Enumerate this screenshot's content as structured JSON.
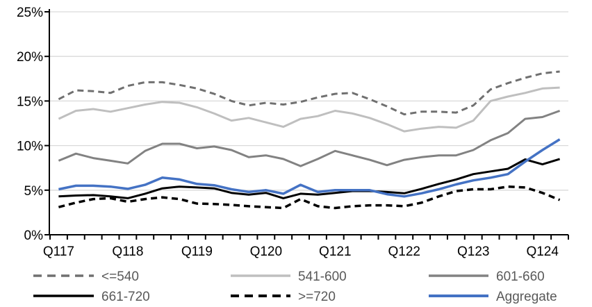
{
  "chart_data": {
    "type": "line",
    "title": "",
    "categories": [
      "2017Q1",
      "2017Q2",
      "2017Q3",
      "2017Q4",
      "2018Q1",
      "2018Q2",
      "2018Q3",
      "2018Q4",
      "2019Q1",
      "2019Q2",
      "2019Q3",
      "2019Q4",
      "2020Q1",
      "2020Q2",
      "2020Q3",
      "2020Q4",
      "2021Q1",
      "2021Q2",
      "2021Q3",
      "2021Q4",
      "2022Q1",
      "2022Q2",
      "2022Q3",
      "2022Q4",
      "2023Q1",
      "2023Q2",
      "2023Q3",
      "2023Q4",
      "2024Q1",
      "2024Q2"
    ],
    "x_tick_labels": [
      "Q117",
      "Q118",
      "Q119",
      "Q120",
      "Q121",
      "Q122",
      "Q123",
      "Q124"
    ],
    "x_tick_label_indices": [
      0,
      4,
      8,
      12,
      16,
      20,
      24,
      28
    ],
    "y_tick_labels": [
      "0%",
      "5%",
      "10%",
      "15%",
      "20%",
      "25%"
    ],
    "y_tick_values": [
      0,
      5,
      10,
      15,
      20,
      25
    ],
    "ylim": [
      0,
      25
    ],
    "grid": "horizontal",
    "gridline_color": "#D9D9D9",
    "axis_color": "#000000",
    "legend_position": "bottom",
    "legend_text_color": "#595959",
    "series": [
      {
        "name": "<=540",
        "color": "#707070",
        "style": "dashed",
        "width": 3,
        "values": [
          15.2,
          16.2,
          16.1,
          15.9,
          16.7,
          17.1,
          17.1,
          16.8,
          16.4,
          15.8,
          15.0,
          14.5,
          14.8,
          14.6,
          14.9,
          15.4,
          15.8,
          15.9,
          15.2,
          14.4,
          13.5,
          13.8,
          13.8,
          13.7,
          14.5,
          16.3,
          17.0,
          17.6,
          18.1,
          18.3
        ]
      },
      {
        "name": "541-600",
        "color": "#BFBFBF",
        "style": "solid",
        "width": 3,
        "values": [
          13.0,
          13.9,
          14.1,
          13.8,
          14.2,
          14.6,
          14.9,
          14.8,
          14.3,
          13.6,
          12.8,
          13.1,
          12.6,
          12.1,
          13.0,
          13.3,
          13.9,
          13.6,
          13.1,
          12.4,
          11.6,
          11.9,
          12.1,
          12.0,
          12.8,
          15.0,
          15.5,
          15.9,
          16.4,
          16.5
        ]
      },
      {
        "name": "601-660",
        "color": "#828282",
        "style": "solid",
        "width": 3,
        "values": [
          8.3,
          9.1,
          8.6,
          8.3,
          8.0,
          9.4,
          10.2,
          10.2,
          9.7,
          9.9,
          9.5,
          8.7,
          8.9,
          8.5,
          7.7,
          8.5,
          9.4,
          8.9,
          8.4,
          7.8,
          8.4,
          8.7,
          8.9,
          8.9,
          9.5,
          10.6,
          11.4,
          13.0,
          13.2,
          13.9
        ]
      },
      {
        "name": "661-720",
        "color": "#000000",
        "style": "solid",
        "width": 3,
        "values": [
          4.3,
          4.4,
          4.45,
          4.3,
          4.1,
          4.6,
          5.2,
          5.4,
          5.3,
          5.2,
          4.7,
          4.5,
          4.7,
          4.1,
          4.6,
          4.5,
          4.7,
          4.9,
          4.9,
          4.8,
          4.65,
          5.15,
          5.7,
          6.2,
          6.8,
          7.1,
          7.4,
          8.45,
          7.9,
          8.5
        ]
      },
      {
        "name": ">=720",
        "color": "#000000",
        "style": "dashed",
        "width": 3.5,
        "values": [
          3.1,
          3.6,
          4.0,
          4.1,
          3.7,
          4.0,
          4.2,
          4.0,
          3.5,
          3.45,
          3.35,
          3.2,
          3.1,
          3.0,
          4.0,
          3.2,
          3.0,
          3.2,
          3.3,
          3.3,
          3.2,
          3.6,
          4.3,
          4.9,
          5.1,
          5.1,
          5.4,
          5.3,
          4.7,
          3.9
        ]
      },
      {
        "name": "Aggregate",
        "color": "#4472C4",
        "style": "solid",
        "width": 3.5,
        "values": [
          5.1,
          5.5,
          5.5,
          5.4,
          5.15,
          5.6,
          6.4,
          6.2,
          5.7,
          5.55,
          5.1,
          4.8,
          5.0,
          4.6,
          5.6,
          4.8,
          5.0,
          5.0,
          5.0,
          4.55,
          4.3,
          4.65,
          5.1,
          5.65,
          6.1,
          6.4,
          6.8,
          8.2,
          9.5,
          10.7
        ]
      }
    ],
    "legend_layout": [
      [
        "<=540",
        "541-600",
        "601-660"
      ],
      [
        "661-720",
        ">=720",
        "Aggregate"
      ]
    ]
  }
}
